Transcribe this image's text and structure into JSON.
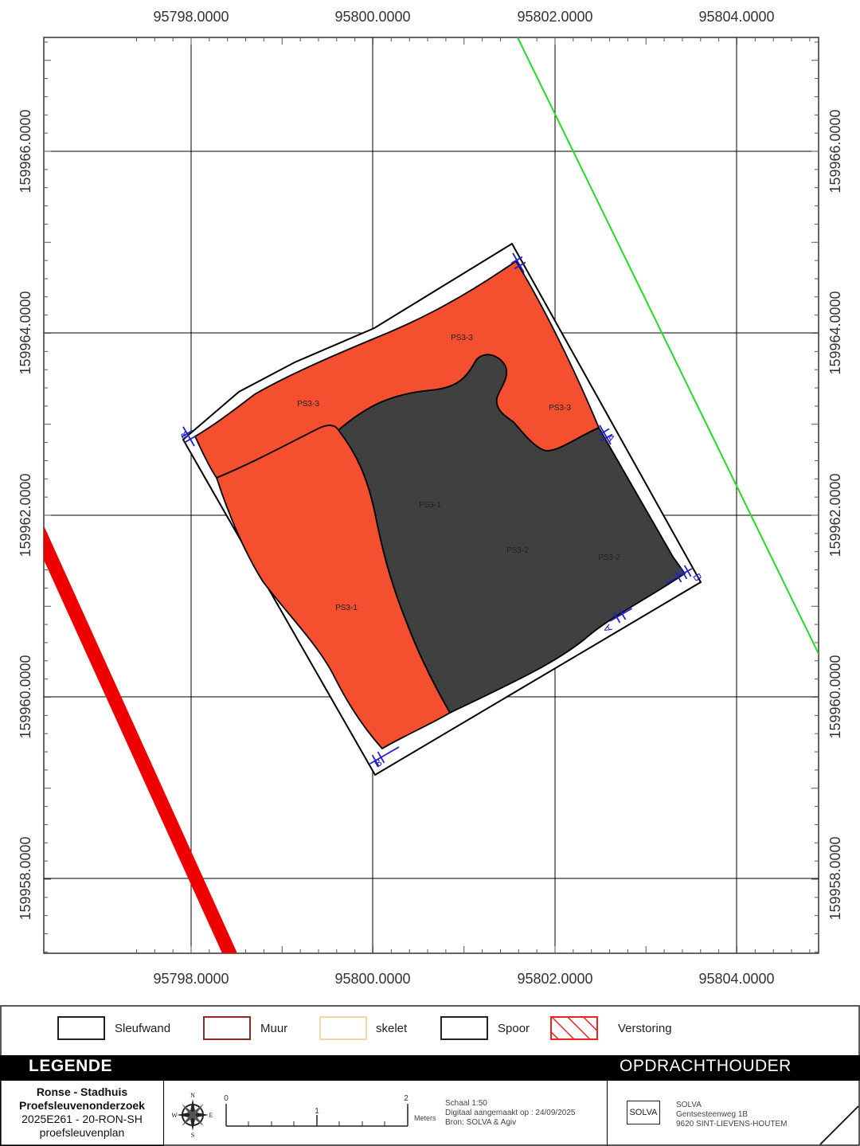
{
  "map": {
    "x_ticks": [
      "95798.0000",
      "95800.0000",
      "95802.0000",
      "95804.0000"
    ],
    "y_ticks": [
      "159966.0000",
      "159964.0000",
      "159962.0000",
      "159960.0000",
      "159958.0000"
    ],
    "feature_labels": [
      "PS3-3",
      "PS3-3",
      "PS3-3",
      "PS3-1",
      "PS3-2",
      "PS3-2",
      "PS3-1"
    ],
    "section_labels": [
      "B",
      "A",
      "B",
      "B",
      "A"
    ],
    "colors": {
      "muur": "#f4502f",
      "spoor": "#404040",
      "line_green": "#22dd22",
      "line_red": "#ee0000",
      "profile": "#2222cc"
    }
  },
  "legend": {
    "items": [
      {
        "label": "Sleufwand",
        "border": "#222222",
        "fill": "#ffffff"
      },
      {
        "label": "Muur",
        "border": "#8b2a1e",
        "fill": "#ffffff"
      },
      {
        "label": "skelet",
        "border": "#f0d8a8",
        "fill": "#ffffff"
      },
      {
        "label": "Spoor",
        "border": "#222222",
        "fill": "#ffffff"
      },
      {
        "label": "Verstoring",
        "border": "#ee2222",
        "fill": "hatched"
      }
    ],
    "title_left": "LEGENDE",
    "title_right": "OPDRACHTHOUDER",
    "project": [
      "Ronse - Stadhuis",
      "Proefsleuvenonderzoek",
      "2025E261 - 20-RON-SH",
      "proefsleuvenplan"
    ],
    "compass": [
      "N",
      "W",
      "E",
      "S"
    ],
    "scalebar": {
      "ticks": [
        "0",
        "1",
        "2"
      ],
      "units": "Meters"
    },
    "scale_info": [
      "Schaal 1:50",
      "Digitaal aangemaakt op : 24/09/2025",
      "Bron: SOLVA & Agiv"
    ],
    "client": {
      "logo": "SOLVA",
      "lines": [
        "SOLVA",
        "Gentsesteenweg 1B",
        "9620 SINT-LIEVENS-HOUTEM"
      ]
    }
  }
}
